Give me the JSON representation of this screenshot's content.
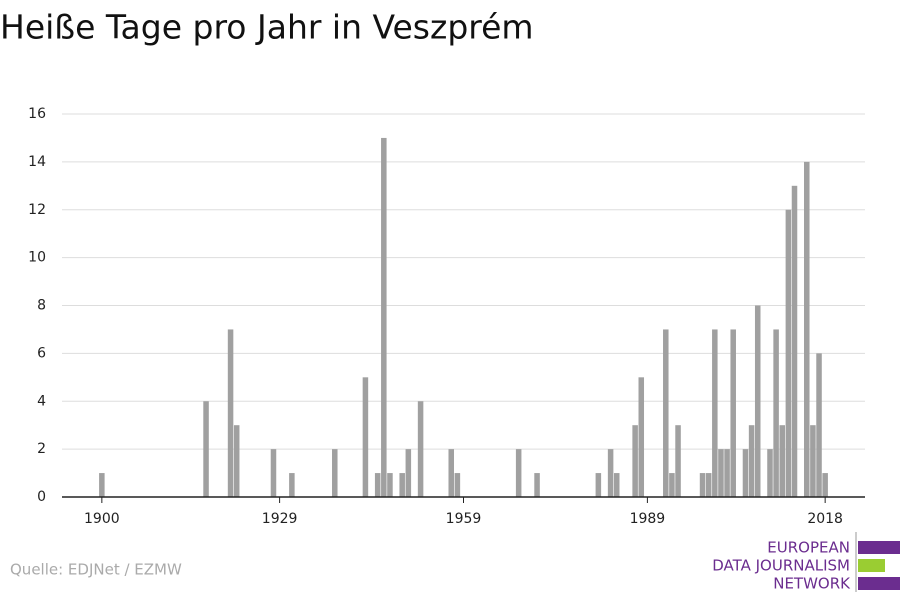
{
  "chart_data": {
    "type": "bar",
    "title": "Heiße Tage pro Jahr in Veszprém",
    "x": [
      1900,
      1917,
      1921,
      1922,
      1928,
      1931,
      1938,
      1943,
      1945,
      1946,
      1947,
      1949,
      1950,
      1952,
      1957,
      1958,
      1968,
      1971,
      1981,
      1983,
      1984,
      1987,
      1988,
      1992,
      1993,
      1994,
      1998,
      1999,
      2000,
      2001,
      2002,
      2003,
      2005,
      2006,
      2007,
      2009,
      2010,
      2011,
      2012,
      2013,
      2015,
      2016,
      2017,
      2018
    ],
    "values": [
      1,
      4,
      7,
      3,
      2,
      1,
      2,
      5,
      1,
      15,
      1,
      1,
      2,
      4,
      2,
      1,
      2,
      1,
      1,
      2,
      1,
      3,
      5,
      7,
      1,
      3,
      1,
      1,
      7,
      2,
      2,
      7,
      2,
      3,
      8,
      2,
      7,
      3,
      12,
      13,
      14,
      3,
      6,
      1
    ],
    "color": "#a0a0a0",
    "xlim": [
      1893.5,
      2024.5
    ],
    "xticks": [
      1900,
      1929,
      1959,
      1989,
      2018
    ],
    "ylim": [
      0,
      16
    ],
    "yticks": [
      0,
      2,
      4,
      6,
      8,
      10,
      12,
      14,
      16
    ],
    "grid": true
  },
  "source": "Quelle: EDJNet / EZMW",
  "logo": {
    "lines": [
      "EUROPEAN",
      "DATA JOURNALISM",
      "NETWORK"
    ]
  }
}
